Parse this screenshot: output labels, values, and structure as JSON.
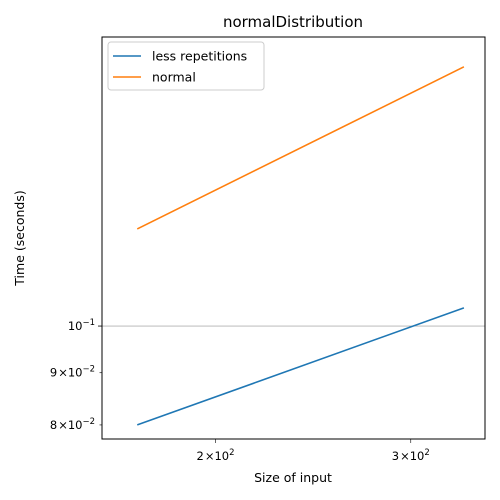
{
  "chart_data": {
    "type": "line",
    "title": "normalDistribution",
    "xlabel": "Size of input",
    "ylabel": "Time (seconds)",
    "xscale": "log",
    "yscale": "log",
    "xlim": [
      158,
      350
    ],
    "ylim": [
      0.0775,
      0.192
    ],
    "x_ticks": [
      {
        "value": 200,
        "base": "2",
        "sup": "2"
      },
      {
        "value": 300,
        "base": "3",
        "sup": "2"
      }
    ],
    "y_ticks": [
      {
        "value": 0.1,
        "base": "10",
        "sup": "−1",
        "mantissa": ""
      },
      {
        "value": 0.09,
        "base": "10",
        "sup": "−2",
        "mantissa": "9"
      },
      {
        "value": 0.08,
        "base": "10",
        "sup": "−2",
        "mantissa": "8"
      }
    ],
    "grid": "y-major",
    "legend": "upper-left",
    "series": [
      {
        "name": "less repetitions",
        "color": "#1f77b4",
        "x": [
          170,
          335
        ],
        "y": [
          0.08,
          0.1042
        ]
      },
      {
        "name": "normal",
        "color": "#ff7f0e",
        "x": [
          170,
          335
        ],
        "y": [
          0.1245,
          0.1795
        ]
      }
    ]
  }
}
